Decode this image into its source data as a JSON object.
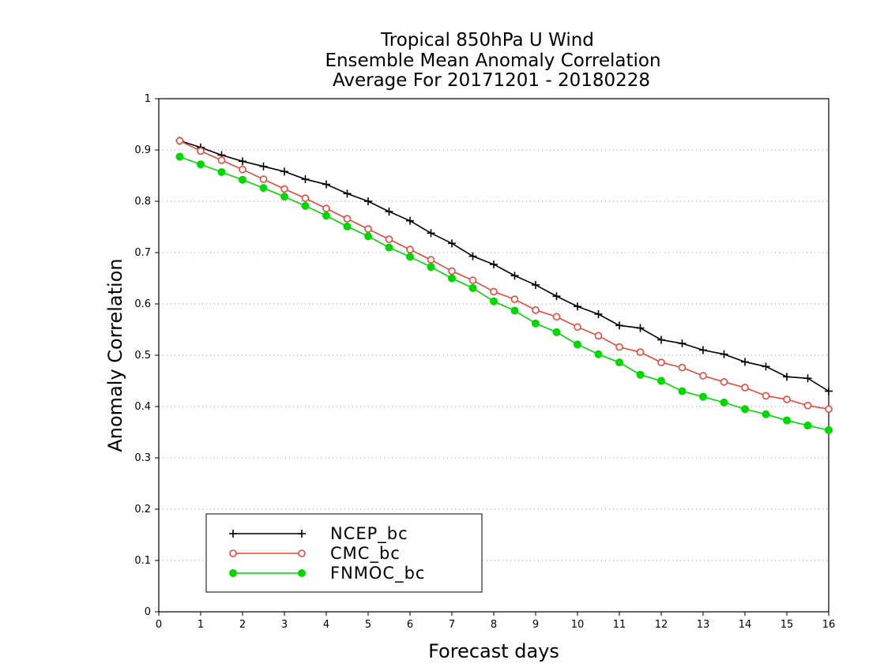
{
  "chart_data": {
    "type": "line",
    "title": [
      "Tropical 850hPa U Wind",
      "Ensemble Mean Anomaly Correlation",
      "Average For 20171201 - 20180228"
    ],
    "xlabel": "Forecast days",
    "ylabel": "Anomaly Correlation",
    "xlim": [
      0,
      16
    ],
    "ylim": [
      0,
      1
    ],
    "xticks": [
      "0",
      "1",
      "2",
      "3",
      "4",
      "5",
      "6",
      "7",
      "8",
      "9",
      "10",
      "11",
      "12",
      "13",
      "14",
      "15",
      "16"
    ],
    "yticks": [
      "0",
      "0.1",
      "0.2",
      "0.3",
      "0.4",
      "0.5",
      "0.6",
      "0.7",
      "0.8",
      "0.9",
      "1"
    ],
    "grid": true,
    "legend_position": "bottom-left",
    "x": [
      0.5,
      1,
      1.5,
      2,
      2.5,
      3,
      3.5,
      4,
      4.5,
      5,
      5.5,
      6,
      6.5,
      7,
      7.5,
      8,
      8.5,
      9,
      9.5,
      10,
      10.5,
      11,
      11.5,
      12,
      12.5,
      13,
      13.5,
      14,
      14.5,
      15,
      15.5,
      16
    ],
    "series": [
      {
        "name": "NCEP_bc",
        "color": "#000000",
        "marker": "plus",
        "values": [
          0.918,
          0.905,
          0.89,
          0.878,
          0.868,
          0.858,
          0.843,
          0.833,
          0.815,
          0.8,
          0.78,
          0.762,
          0.738,
          0.718,
          0.693,
          0.677,
          0.655,
          0.637,
          0.615,
          0.595,
          0.58,
          0.558,
          0.553,
          0.53,
          0.523,
          0.51,
          0.502,
          0.487,
          0.478,
          0.458,
          0.455,
          0.43
        ]
      },
      {
        "name": "CMC_bc",
        "color": "#e8473c",
        "marker": "open-circle",
        "values": [
          0.918,
          0.898,
          0.88,
          0.862,
          0.843,
          0.824,
          0.806,
          0.786,
          0.766,
          0.746,
          0.726,
          0.706,
          0.686,
          0.664,
          0.646,
          0.624,
          0.609,
          0.588,
          0.575,
          0.555,
          0.538,
          0.516,
          0.506,
          0.486,
          0.476,
          0.46,
          0.448,
          0.437,
          0.421,
          0.414,
          0.402,
          0.395
        ]
      },
      {
        "name": "FNMOC_bc",
        "color": "#00d800",
        "marker": "filled-circle",
        "values": [
          0.887,
          0.872,
          0.857,
          0.842,
          0.826,
          0.809,
          0.791,
          0.772,
          0.751,
          0.732,
          0.71,
          0.692,
          0.672,
          0.65,
          0.631,
          0.605,
          0.587,
          0.562,
          0.545,
          0.521,
          0.502,
          0.486,
          0.462,
          0.45,
          0.43,
          0.419,
          0.408,
          0.395,
          0.385,
          0.373,
          0.363,
          0.354
        ]
      }
    ]
  }
}
